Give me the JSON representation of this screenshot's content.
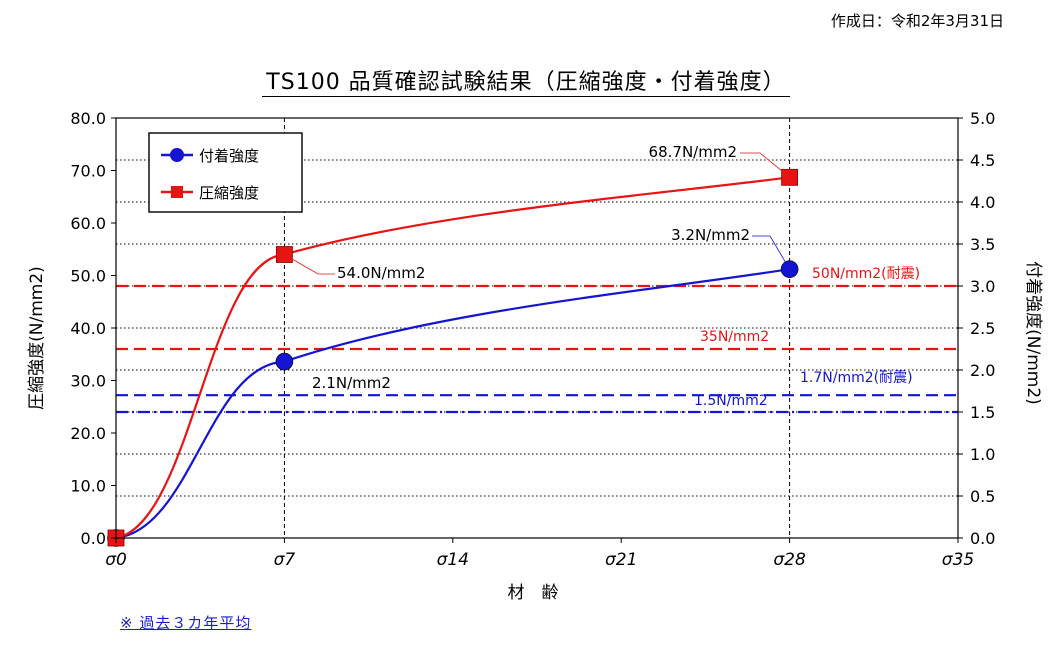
{
  "header": {
    "creation_date": "作成日：令和2年3月31日"
  },
  "footnote": "※ 過去３カ年平均",
  "chart_data": {
    "type": "line",
    "title": "TS100 品質確認試験結果（圧縮強度・付着強度）",
    "xlabel": "材　齢",
    "ylabel_left": "圧縮強度(N/mm2)",
    "ylabel_right": "付着強度(N/mm2)",
    "x_ticks": [
      {
        "value": 0,
        "label": "σ0"
      },
      {
        "value": 7,
        "label": "σ7"
      },
      {
        "value": 14,
        "label": "σ14"
      },
      {
        "value": 21,
        "label": "σ21"
      },
      {
        "value": 28,
        "label": "σ28"
      },
      {
        "value": 35,
        "label": "σ35"
      }
    ],
    "xlim": [
      0,
      35
    ],
    "ylim_left": [
      0,
      80
    ],
    "ylim_right": [
      0,
      5
    ],
    "y_ticks_left": [
      "0.0",
      "10.0",
      "20.0",
      "30.0",
      "40.0",
      "50.0",
      "60.0",
      "70.0",
      "80.0"
    ],
    "y_ticks_right": [
      "0.0",
      "0.5",
      "1.0",
      "1.5",
      "2.0",
      "2.5",
      "3.0",
      "3.5",
      "4.0",
      "4.5",
      "5.0"
    ],
    "grid": "horizontal-dotted",
    "legend_position": "top-left",
    "series": [
      {
        "name": "付着強度",
        "axis": "right",
        "color": "#1414d2",
        "marker": "circle",
        "points": [
          {
            "x": 0,
            "y": 0,
            "label": ""
          },
          {
            "x": 7,
            "y": 2.1,
            "label": "2.1N/mm2"
          },
          {
            "x": 28,
            "y": 3.2,
            "label": "3.2N/mm2"
          }
        ]
      },
      {
        "name": "圧縮強度",
        "axis": "left",
        "color": "#e81414",
        "marker": "square",
        "points": [
          {
            "x": 0,
            "y": 0,
            "label": ""
          },
          {
            "x": 7,
            "y": 54.0,
            "label": "54.0N/mm2"
          },
          {
            "x": 28,
            "y": 68.7,
            "label": "68.7N/mm2"
          }
        ]
      }
    ],
    "reference_lines": [
      {
        "label": "50N/mm2(耐震)",
        "axis": "right",
        "value": 3.0,
        "color": "#e81414",
        "style": "dash"
      },
      {
        "label": "35N/mm2",
        "axis": "right",
        "value": 2.25,
        "color": "#e81414",
        "style": "dash"
      },
      {
        "label": "1.7N/mm2(耐震)",
        "axis": "right",
        "value": 1.7,
        "color": "#1414d2",
        "style": "dash"
      },
      {
        "label": "1.5N/mm2",
        "axis": "right",
        "value": 1.5,
        "color": "#1414d2",
        "style": "dashdot"
      }
    ],
    "vertical_lines": [
      7,
      28
    ]
  }
}
